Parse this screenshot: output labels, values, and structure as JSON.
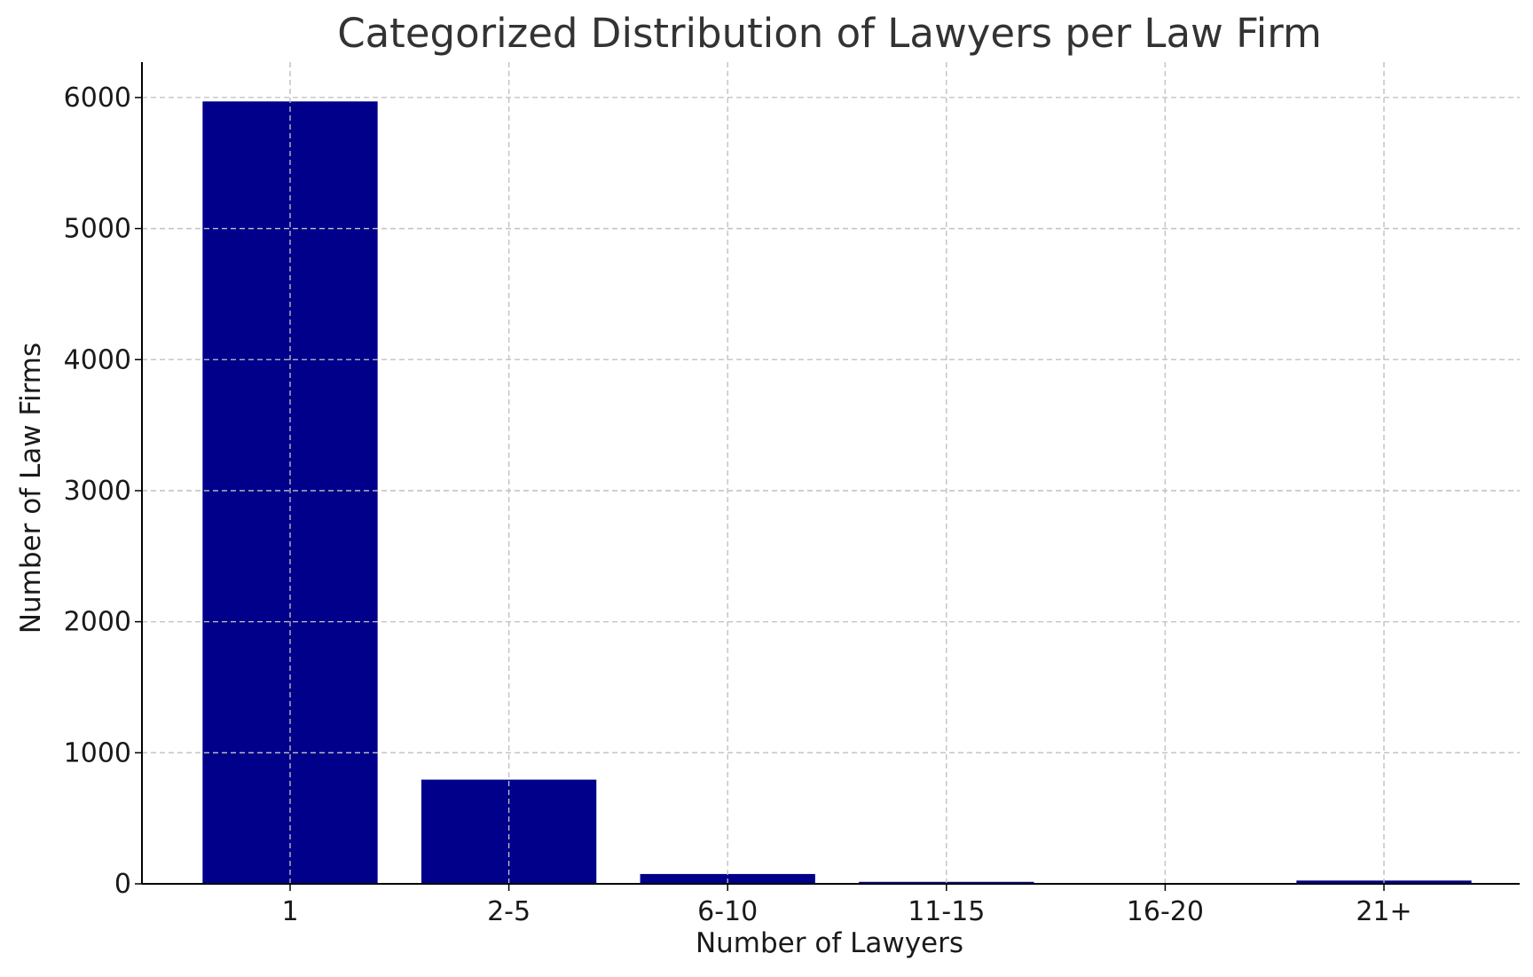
{
  "chart_data": {
    "type": "bar",
    "title": "Categorized Distribution of Lawyers per Law Firm",
    "xlabel": "Number of Lawyers",
    "ylabel": "Number of Law Firms",
    "categories": [
      "1",
      "2-5",
      "6-10",
      "11-15",
      "16-20",
      "21+"
    ],
    "values": [
      5970,
      795,
      75,
      15,
      5,
      25
    ],
    "ylim": [
      0,
      6270
    ],
    "yticks": [
      0,
      1000,
      2000,
      3000,
      4000,
      5000,
      6000
    ],
    "grid": true,
    "bar_color": "#00008B"
  }
}
